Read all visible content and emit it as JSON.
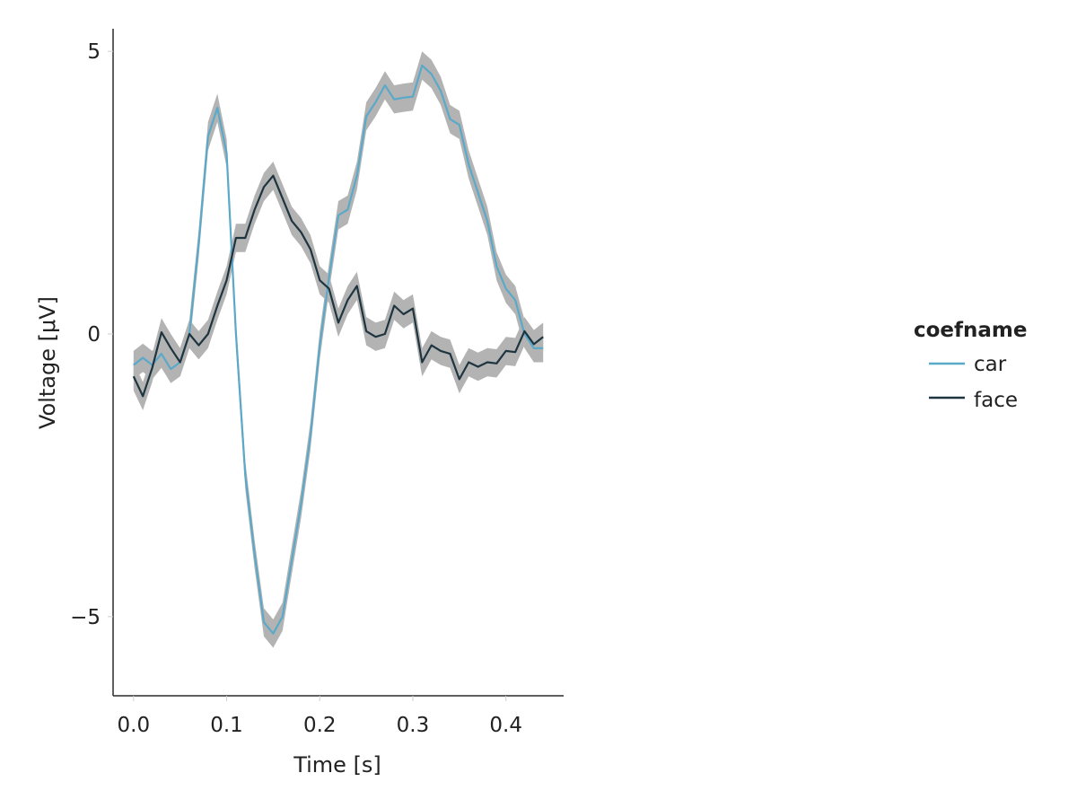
{
  "chart_data": {
    "type": "line",
    "xlabel": "Time [s]",
    "ylabel": "Voltage [μV]",
    "xlim": [
      -0.022,
      0.462
    ],
    "ylim": [
      -6.4,
      5.4
    ],
    "xticks": [
      0.0,
      0.1,
      0.2,
      0.3,
      0.4
    ],
    "xtick_labels": [
      "0.0",
      "0.1",
      "0.2",
      "0.3",
      "0.4"
    ],
    "yticks": [
      5,
      0,
      -5
    ],
    "ytick_labels": [
      "5",
      "0",
      "−5"
    ],
    "grid": false,
    "legend": {
      "title": "coefname",
      "placement": "right"
    },
    "x": [
      0.0,
      0.01,
      0.02,
      0.03,
      0.04,
      0.05,
      0.06,
      0.07,
      0.08,
      0.09,
      0.1,
      0.11,
      0.12,
      0.13,
      0.14,
      0.15,
      0.16,
      0.17,
      0.18,
      0.19,
      0.2,
      0.21,
      0.22,
      0.23,
      0.24,
      0.25,
      0.26,
      0.27,
      0.28,
      0.29,
      0.3,
      0.31,
      0.32,
      0.33,
      0.34,
      0.35,
      0.36,
      0.37,
      0.38,
      0.39,
      0.4,
      0.41,
      0.42,
      0.43,
      0.44
    ],
    "series": [
      {
        "name": "car",
        "color": "#5aa9c9",
        "values": [
          -0.55,
          -0.42,
          -0.55,
          -0.35,
          -0.62,
          -0.5,
          0.0,
          1.6,
          3.5,
          4.0,
          3.2,
          0.0,
          -2.5,
          -3.9,
          -5.1,
          -5.3,
          -5.0,
          -4.0,
          -3.0,
          -1.8,
          -0.2,
          1.0,
          2.1,
          2.2,
          2.8,
          3.85,
          4.1,
          4.4,
          4.15,
          4.18,
          4.2,
          4.75,
          4.6,
          4.3,
          3.8,
          3.7,
          3.0,
          2.5,
          2.0,
          1.2,
          0.8,
          0.6,
          0.0,
          -0.25,
          -0.25
        ]
      },
      {
        "name": "face",
        "color": "#1e3540",
        "values": [
          -0.75,
          -1.1,
          -0.6,
          0.03,
          -0.25,
          -0.5,
          0.0,
          -0.2,
          0.0,
          0.5,
          0.95,
          1.7,
          1.7,
          2.2,
          2.6,
          2.8,
          2.4,
          2.0,
          1.8,
          1.5,
          0.95,
          0.8,
          0.2,
          0.6,
          0.85,
          0.05,
          -0.05,
          0.0,
          0.5,
          0.35,
          0.45,
          -0.5,
          -0.2,
          -0.3,
          -0.35,
          -0.8,
          -0.5,
          -0.58,
          -0.5,
          -0.52,
          -0.3,
          -0.32,
          0.05,
          -0.18,
          -0.05
        ]
      }
    ]
  }
}
